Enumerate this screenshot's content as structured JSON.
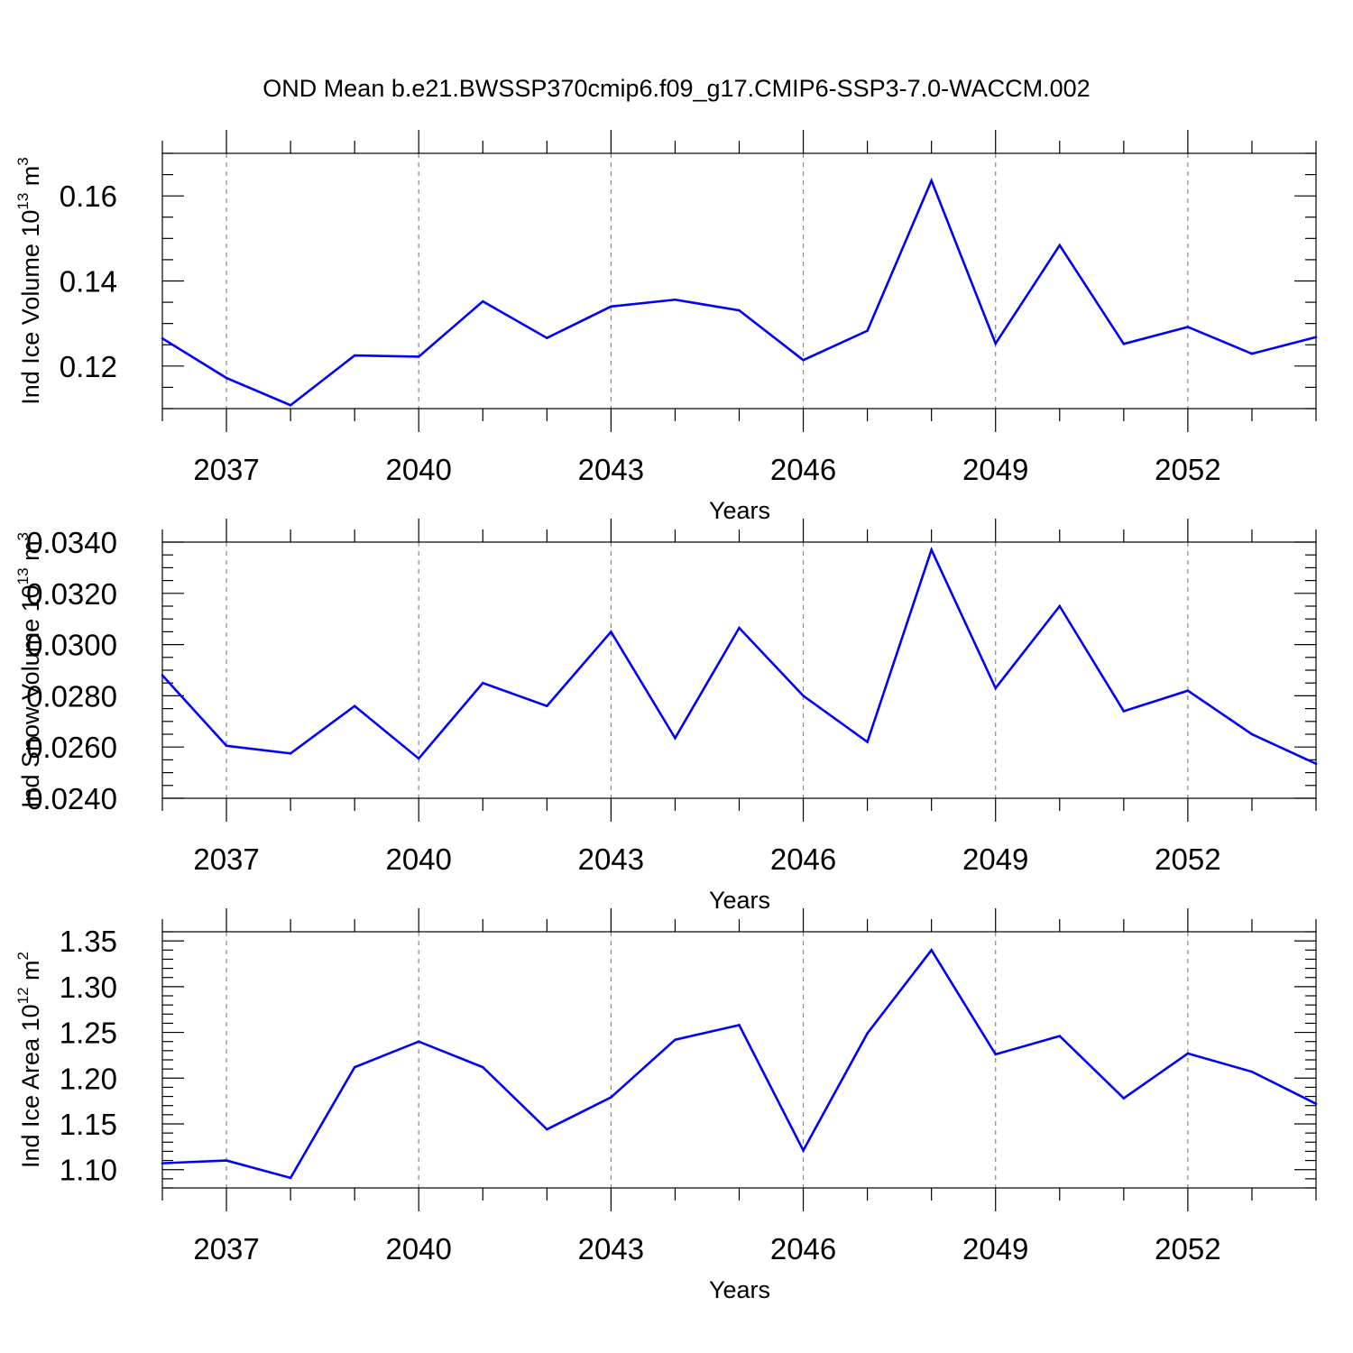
{
  "figure": {
    "title": "OND Mean b.e21.BWSSP370cmip6.f09_g17.CMIP6-SSP3-7.0-WACCM.002",
    "line_color": "#0000ff"
  },
  "chart_data": [
    {
      "type": "line",
      "xlabel": "Years",
      "ylabel": {
        "main": "Ind Ice Volume 10",
        "sup": "13",
        "unit": "m",
        "unit_sup": "3"
      },
      "xlim": [
        2036,
        2054
      ],
      "ylim": [
        0.11,
        0.17
      ],
      "x_ticks": [
        2037,
        2040,
        2043,
        2046,
        2049,
        2052
      ],
      "x_tick_labels": [
        "2037",
        "2040",
        "2043",
        "2046",
        "2049",
        "2052"
      ],
      "y_ticks": [
        0.12,
        0.14,
        0.16
      ],
      "y_tick_labels": [
        "0.12",
        "0.14",
        "0.16"
      ],
      "y_minor_step": 0.005,
      "grid": "vertical dashed at major x ticks",
      "series": [
        {
          "x": [
            2036,
            2037,
            2038,
            2039,
            2040,
            2041,
            2042,
            2043,
            2044,
            2045,
            2046,
            2047,
            2048,
            2049,
            2050,
            2051,
            2052,
            2053,
            2054
          ],
          "values": [
            0.1265,
            0.1172,
            0.1108,
            0.1225,
            0.1222,
            0.1352,
            0.1266,
            0.134,
            0.1356,
            0.1331,
            0.1214,
            0.1283,
            0.1636,
            0.1253,
            0.1484,
            0.1252,
            0.1292,
            0.1229,
            0.1268
          ]
        }
      ]
    },
    {
      "type": "line",
      "xlabel": "Years",
      "ylabel": {
        "main": "Ind Snow Volume 10",
        "sup": "13",
        "unit": "m",
        "unit_sup": "3"
      },
      "xlim": [
        2036,
        2054
      ],
      "ylim": [
        0.024,
        0.034
      ],
      "x_ticks": [
        2037,
        2040,
        2043,
        2046,
        2049,
        2052
      ],
      "x_tick_labels": [
        "2037",
        "2040",
        "2043",
        "2046",
        "2049",
        "2052"
      ],
      "y_ticks": [
        0.024,
        0.026,
        0.028,
        0.03,
        0.032,
        0.034
      ],
      "y_tick_labels": [
        "0.0240",
        "0.0260",
        "0.0280",
        "0.0300",
        "0.0320",
        "0.0340"
      ],
      "y_minor_step": 0.0005,
      "grid": "vertical dashed at major x ticks",
      "series": [
        {
          "x": [
            2036,
            2037,
            2038,
            2039,
            2040,
            2041,
            2042,
            2043,
            2044,
            2045,
            2046,
            2047,
            2048,
            2049,
            2050,
            2051,
            2052,
            2053,
            2054
          ],
          "values": [
            0.0288,
            0.02605,
            0.02575,
            0.0276,
            0.02555,
            0.0285,
            0.0276,
            0.0305,
            0.02635,
            0.03065,
            0.028,
            0.0262,
            0.0337,
            0.0283,
            0.0315,
            0.0274,
            0.0282,
            0.0265,
            0.02535
          ]
        }
      ]
    },
    {
      "type": "line",
      "xlabel": "Years",
      "ylabel": {
        "main": "Ind Ice Area 10",
        "sup": "12",
        "unit": "m",
        "unit_sup": "2"
      },
      "xlim": [
        2036,
        2054
      ],
      "ylim": [
        1.08,
        1.36
      ],
      "x_ticks": [
        2037,
        2040,
        2043,
        2046,
        2049,
        2052
      ],
      "x_tick_labels": [
        "2037",
        "2040",
        "2043",
        "2046",
        "2049",
        "2052"
      ],
      "y_ticks": [
        1.1,
        1.15,
        1.2,
        1.25,
        1.3,
        1.35
      ],
      "y_tick_labels": [
        "1.10",
        "1.15",
        "1.20",
        "1.25",
        "1.30",
        "1.35"
      ],
      "y_minor_step": 0.01,
      "grid": "vertical dashed at major x ticks",
      "series": [
        {
          "x": [
            2036,
            2037,
            2038,
            2039,
            2040,
            2041,
            2042,
            2043,
            2044,
            2045,
            2046,
            2047,
            2048,
            2049,
            2050,
            2051,
            2052,
            2053,
            2054
          ],
          "values": [
            1.107,
            1.11,
            1.091,
            1.212,
            1.24,
            1.212,
            1.144,
            1.179,
            1.242,
            1.258,
            1.121,
            1.249,
            1.34,
            1.226,
            1.246,
            1.178,
            1.227,
            1.207,
            1.172
          ]
        }
      ]
    }
  ]
}
